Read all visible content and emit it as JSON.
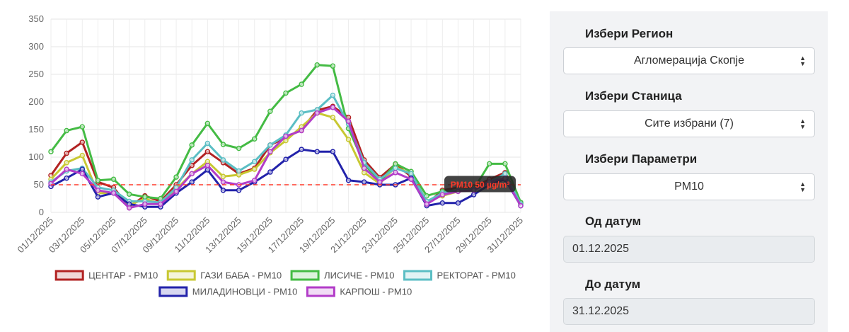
{
  "chart_data": {
    "type": "line",
    "x": [
      "01/12/2025",
      "02/12/2025",
      "03/12/2025",
      "04/12/2025",
      "05/12/2025",
      "06/12/2025",
      "07/12/2025",
      "08/12/2025",
      "09/12/2025",
      "10/12/2025",
      "11/12/2025",
      "12/12/2025",
      "13/12/2025",
      "14/12/2025",
      "15/12/2025",
      "16/12/2025",
      "17/12/2025",
      "18/12/2025",
      "19/12/2025",
      "20/12/2025",
      "21/12/2025",
      "22/12/2025",
      "23/12/2025",
      "24/12/2025",
      "25/12/2025",
      "26/12/2025",
      "27/12/2025",
      "28/12/2025",
      "29/12/2025",
      "30/12/2025",
      "31/12/2025"
    ],
    "x_tick_labels": [
      "01/12/2025",
      "03/12/2025",
      "05/12/2025",
      "07/12/2025",
      "09/12/2025",
      "11/12/2025",
      "13/12/2025",
      "15/12/2025",
      "17/12/2025",
      "19/12/2025",
      "21/12/2025",
      "23/12/2025",
      "25/12/2025",
      "27/12/2025",
      "29/12/2025",
      "31/12/2025"
    ],
    "ylim": [
      0,
      350
    ],
    "y_ticks": [
      "0",
      "50",
      "100",
      "150",
      "200",
      "250",
      "300",
      "350"
    ],
    "grid": true,
    "legend_position": "bottom",
    "series": [
      {
        "name": "ЦЕНТАР - PM10",
        "color": "#b22222",
        "values": [
          67,
          107,
          127,
          55,
          45,
          10,
          30,
          20,
          50,
          85,
          110,
          90,
          70,
          80,
          122,
          135,
          150,
          185,
          192,
          172,
          95,
          63,
          87,
          65,
          15,
          40,
          45,
          45,
          60,
          72,
          16
        ]
      },
      {
        "name": "ГАЗИ БАБА - PM10",
        "color": "#c8c832",
        "values": [
          60,
          90,
          103,
          35,
          35,
          13,
          25,
          15,
          42,
          70,
          92,
          65,
          68,
          78,
          108,
          130,
          155,
          180,
          172,
          132,
          72,
          52,
          82,
          70,
          20,
          30,
          38,
          40,
          55,
          62,
          15
        ]
      },
      {
        "name": "ЛИСИЧЕ - PM10",
        "color": "#44bb44",
        "values": [
          110,
          148,
          155,
          58,
          60,
          33,
          28,
          25,
          64,
          122,
          161,
          123,
          116,
          133,
          183,
          216,
          232,
          267,
          265,
          152,
          88,
          55,
          88,
          74,
          30,
          38,
          40,
          42,
          88,
          88,
          18
        ]
      },
      {
        "name": "РЕКТОРАТ - PM10",
        "color": "#5bbec4",
        "values": [
          55,
          75,
          80,
          45,
          40,
          20,
          20,
          18,
          45,
          95,
          125,
          95,
          75,
          92,
          122,
          140,
          180,
          186,
          212,
          160,
          90,
          60,
          80,
          70,
          20,
          35,
          40,
          42,
          55,
          70,
          15
        ]
      },
      {
        "name": "МИЛАДИНОВЦИ - PM10",
        "color": "#2222aa",
        "values": [
          47,
          62,
          78,
          28,
          35,
          15,
          10,
          10,
          35,
          55,
          77,
          40,
          40,
          55,
          73,
          96,
          114,
          110,
          110,
          58,
          55,
          50,
          50,
          62,
          12,
          17,
          17,
          32,
          50,
          60,
          12
        ]
      },
      {
        "name": "КАРПОШ - PM10",
        "color": "#b23cc8",
        "values": [
          52,
          78,
          70,
          40,
          35,
          8,
          15,
          15,
          38,
          70,
          85,
          55,
          50,
          58,
          110,
          138,
          148,
          180,
          190,
          165,
          80,
          55,
          72,
          60,
          15,
          32,
          38,
          40,
          55,
          62,
          12
        ]
      }
    ],
    "annotations": [
      {
        "type": "hline",
        "y": 50,
        "label": "PM10 50 µg/m³",
        "color": "#ff3a2a"
      }
    ]
  },
  "panel": {
    "region_label": "Избери Регион",
    "region_value": "Агломерација Скопје",
    "station_label": "Избери Станица",
    "station_value": "Сите избрани (7)",
    "param_label": "Избери Параметри",
    "param_value": "PM10",
    "from_label": "Од датум",
    "from_value": "01.12.2025",
    "to_label": "До датум",
    "to_value": "31.12.2025"
  }
}
